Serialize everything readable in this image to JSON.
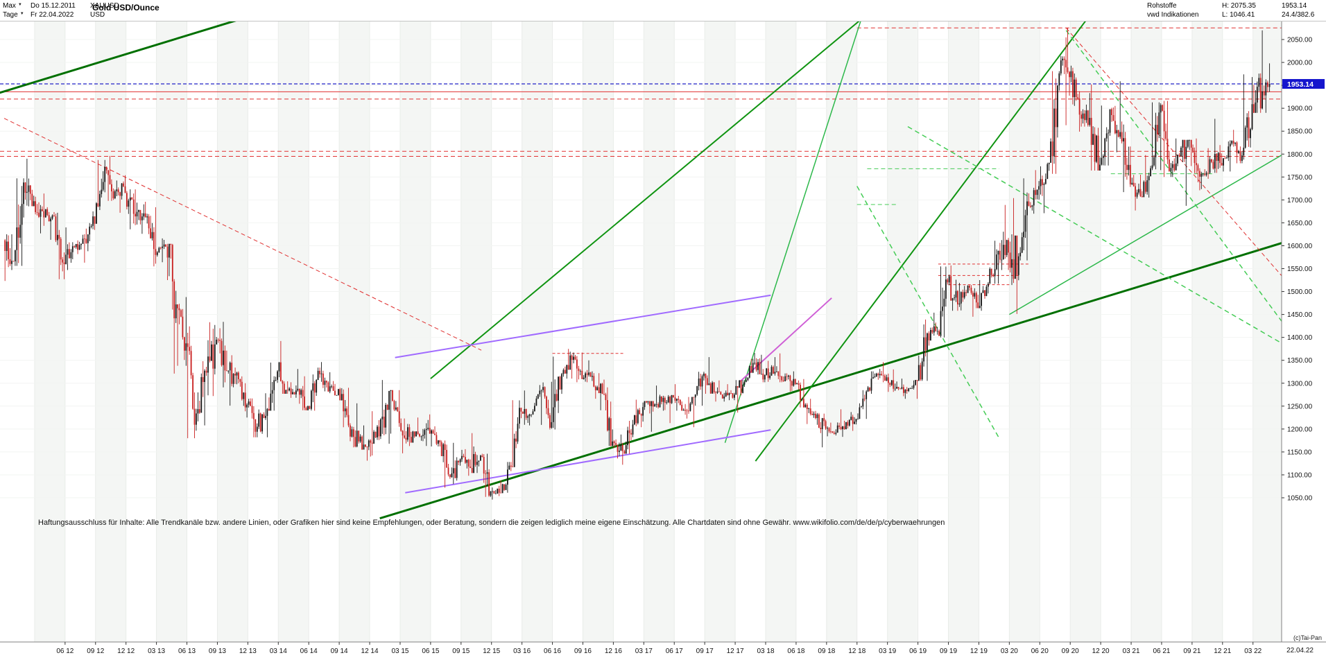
{
  "header": {
    "range_selector": "Max",
    "start_date": "Do 15.12.2011",
    "symbol": "XAUUSD",
    "period_selector": "Tage",
    "end_date": "Fr 22.04.2022",
    "currency": "USD",
    "title": "Gold USD/Ounce",
    "category": "Rohstoffe",
    "provider": "vwd Indikationen",
    "high_label": "H: 2075.35",
    "low_label": "L: 1046.41",
    "last_price": "1953.14",
    "change_info": "24.4/382.6"
  },
  "icons": {
    "dropdown": "▼"
  },
  "price_axis": {
    "max": 2050,
    "min": 1050,
    "step": 50,
    "labels": [
      "2050.00",
      "2000.00",
      "1950.00",
      "1900.00",
      "1850.00",
      "1800.00",
      "1750.00",
      "1700.00",
      "1650.00",
      "1600.00",
      "1550.00",
      "1500.00",
      "1450.00",
      "1400.00",
      "1350.00",
      "1300.00",
      "1250.00",
      "1200.00",
      "1150.00",
      "1100.00",
      "1050.00"
    ],
    "badge": {
      "text": "1953.14",
      "price": 1953.14,
      "color": "#1515cd"
    }
  },
  "time_axis": {
    "labels": [
      "06 12",
      "09 12",
      "12 12",
      "03 13",
      "06 13",
      "09 13",
      "12 13",
      "03 14",
      "06 14",
      "09 14",
      "12 14",
      "03 15",
      "06 15",
      "09 15",
      "12 15",
      "03 16",
      "06 16",
      "09 16",
      "12 16",
      "03 17",
      "06 17",
      "09 17",
      "12 17",
      "03 18",
      "06 18",
      "09 18",
      "12 18",
      "03 19",
      "06 19",
      "09 19",
      "12 19",
      "03 20",
      "06 20",
      "09 20",
      "12 20",
      "03 21",
      "06 21",
      "09 21",
      "12 21",
      "03 22"
    ],
    "first_label_month": 6,
    "label_step_months": 3,
    "end_date": "22.04.22",
    "copyright": "(c)Tai-Pan"
  },
  "disclaimer": "Haftungsausschluss für Inhalte: Alle Trendkanäle bzw. andere Linien, oder Grafiken hier sind keine Empfehlungen, oder Beratung, sondern die zeigen lediglich meine eigene Einschätzung. Alle Chartdaten sind ohne Gewähr.  www.wikifolio.com/de/de/p/cyberwaehrungen",
  "chart_data": {
    "type": "candlestick",
    "title": "Gold USD/Ounce",
    "x_start": "2011-12-15",
    "x_end": "2022-04-22",
    "x_unit": "months since 2011-12",
    "ylim": [
      1050,
      2050
    ],
    "y_axis": {
      "min": 1050,
      "max": 2050,
      "step": 50
    },
    "shown_high": 2075.35,
    "shown_low": 1046.41,
    "last": 1953.14,
    "first_open": 1612,
    "candle_up_color": "#151515",
    "candle_down_color": "#c81e1e",
    "monthly_hlc_note": "per month [high, low, close], Dec 2011 .. Apr 2022",
    "monthly_hlc": [
      [
        1625,
        1523,
        1566
      ],
      [
        1747,
        1556,
        1738
      ],
      [
        1790,
        1686,
        1697
      ],
      [
        1714,
        1627,
        1662
      ],
      [
        1684,
        1613,
        1664
      ],
      [
        1672,
        1527,
        1560
      ],
      [
        1640,
        1547,
        1597
      ],
      [
        1625,
        1563,
        1615
      ],
      [
        1675,
        1588,
        1648
      ],
      [
        1787,
        1648,
        1772
      ],
      [
        1796,
        1698,
        1719
      ],
      [
        1754,
        1672,
        1715
      ],
      [
        1723,
        1636,
        1664
      ],
      [
        1696,
        1626,
        1662
      ],
      [
        1684,
        1555,
        1580
      ],
      [
        1616,
        1564,
        1598
      ],
      [
        1604,
        1321,
        1472
      ],
      [
        1488,
        1338,
        1387
      ],
      [
        1424,
        1180,
        1234
      ],
      [
        1348,
        1208,
        1323
      ],
      [
        1433,
        1272,
        1395
      ],
      [
        1434,
        1291,
        1327
      ],
      [
        1361,
        1251,
        1323
      ],
      [
        1326,
        1225,
        1253
      ],
      [
        1267,
        1182,
        1205
      ],
      [
        1278,
        1182,
        1244
      ],
      [
        1345,
        1240,
        1326
      ],
      [
        1392,
        1277,
        1284
      ],
      [
        1331,
        1268,
        1288
      ],
      [
        1315,
        1241,
        1250
      ],
      [
        1334,
        1240,
        1327
      ],
      [
        1346,
        1281,
        1282
      ],
      [
        1324,
        1273,
        1287
      ],
      [
        1290,
        1204,
        1208
      ],
      [
        1256,
        1160,
        1173
      ],
      [
        1208,
        1131,
        1175
      ],
      [
        1239,
        1140,
        1184
      ],
      [
        1307,
        1168,
        1283
      ],
      [
        1285,
        1190,
        1213
      ],
      [
        1223,
        1147,
        1183
      ],
      [
        1225,
        1170,
        1184
      ],
      [
        1232,
        1163,
        1190
      ],
      [
        1206,
        1162,
        1171
      ],
      [
        1175,
        1072,
        1095
      ],
      [
        1170,
        1080,
        1134
      ],
      [
        1156,
        1098,
        1115
      ],
      [
        1191,
        1104,
        1142
      ],
      [
        1146,
        1052,
        1064
      ],
      [
        1088,
        1046,
        1060
      ],
      [
        1128,
        1061,
        1118
      ],
      [
        1263,
        1117,
        1238
      ],
      [
        1284,
        1208,
        1232
      ],
      [
        1296,
        1209,
        1285
      ],
      [
        1303,
        1199,
        1215
      ],
      [
        1358,
        1199,
        1320
      ],
      [
        1375,
        1310,
        1351
      ],
      [
        1367,
        1302,
        1309
      ],
      [
        1350,
        1302,
        1316
      ],
      [
        1322,
        1241,
        1277
      ],
      [
        1308,
        1163,
        1173
      ],
      [
        1188,
        1122,
        1152
      ],
      [
        1220,
        1146,
        1210
      ],
      [
        1264,
        1204,
        1248
      ],
      [
        1261,
        1194,
        1249
      ],
      [
        1295,
        1240,
        1268
      ],
      [
        1274,
        1213,
        1269
      ],
      [
        1298,
        1240,
        1242
      ],
      [
        1270,
        1204,
        1269
      ],
      [
        1325,
        1251,
        1321
      ],
      [
        1357,
        1277,
        1280
      ],
      [
        1306,
        1260,
        1271
      ],
      [
        1298,
        1263,
        1275
      ],
      [
        1307,
        1236,
        1303
      ],
      [
        1366,
        1302,
        1345
      ],
      [
        1362,
        1302,
        1318
      ],
      [
        1357,
        1303,
        1325
      ],
      [
        1365,
        1302,
        1315
      ],
      [
        1326,
        1282,
        1298
      ],
      [
        1309,
        1247,
        1253
      ],
      [
        1266,
        1211,
        1224
      ],
      [
        1235,
        1160,
        1201
      ],
      [
        1214,
        1184,
        1192
      ],
      [
        1243,
        1183,
        1215
      ],
      [
        1237,
        1196,
        1222
      ],
      [
        1285,
        1222,
        1282
      ],
      [
        1326,
        1277,
        1321
      ],
      [
        1346,
        1302,
        1313
      ],
      [
        1330,
        1281,
        1292
      ],
      [
        1310,
        1266,
        1283
      ],
      [
        1307,
        1266,
        1305
      ],
      [
        1439,
        1305,
        1409
      ],
      [
        1454,
        1382,
        1414
      ],
      [
        1555,
        1400,
        1520
      ],
      [
        1557,
        1458,
        1472
      ],
      [
        1519,
        1459,
        1513
      ],
      [
        1514,
        1445,
        1464
      ],
      [
        1525,
        1458,
        1517
      ],
      [
        1611,
        1517,
        1589
      ],
      [
        1689,
        1547,
        1585
      ],
      [
        1704,
        1451,
        1577
      ],
      [
        1747,
        1568,
        1687
      ],
      [
        1765,
        1670,
        1730
      ],
      [
        1781,
        1671,
        1781
      ],
      [
        1981,
        1757,
        1976
      ],
      [
        2075.35,
        1863,
        1968
      ],
      [
        1993,
        1849,
        1886
      ],
      [
        1933,
        1860,
        1879
      ],
      [
        1952,
        1764,
        1777
      ],
      [
        1906,
        1775,
        1898
      ],
      [
        1959,
        1804,
        1848
      ],
      [
        1871,
        1717,
        1734
      ],
      [
        1755,
        1677,
        1708
      ],
      [
        1798,
        1705,
        1769
      ],
      [
        1913,
        1765,
        1907
      ],
      [
        1916,
        1750,
        1770
      ],
      [
        1834,
        1750,
        1814
      ],
      [
        1831,
        1687,
        1814
      ],
      [
        1834,
        1721,
        1757
      ],
      [
        1813,
        1746,
        1783
      ],
      [
        1877,
        1759,
        1775
      ],
      [
        1830,
        1762,
        1829
      ],
      [
        1853,
        1780,
        1797
      ],
      [
        1974,
        1788,
        1909
      ],
      [
        2070,
        1890,
        1937
      ],
      [
        1998,
        1890,
        1953.14
      ]
    ],
    "lines": {
      "horizontal": [
        {
          "p": 1953.14,
          "color": "#2121c8",
          "dash": "5,3",
          "w": 1.2,
          "name": "last-price-line"
        },
        {
          "p": 1936,
          "color": "#e03030",
          "w": 1,
          "name": "resistance-line"
        },
        {
          "p": 1920,
          "color": "#e03030",
          "dash": "6,4",
          "w": 1,
          "name": "resistance-line"
        },
        {
          "p": 1806,
          "color": "#e03030",
          "dash": "6,4",
          "w": 1,
          "name": "support-line"
        },
        {
          "p": 1795,
          "color": "#e03030",
          "dash": "6,4",
          "w": 1,
          "name": "support-line"
        },
        {
          "p": 2075.35,
          "m1": 84,
          "color": "#e03030",
          "dash": "6,4",
          "w": 1,
          "name": "all-time-high-line"
        },
        {
          "p": 1560,
          "m1": 92,
          "m2": 101,
          "color": "#e03030",
          "dash": "4,3",
          "w": 1,
          "name": "level-line"
        },
        {
          "p": 1535,
          "m1": 92,
          "m2": 100,
          "color": "#e03030",
          "dash": "4,3",
          "w": 1,
          "name": "level-line"
        },
        {
          "p": 1515,
          "m1": 93,
          "m2": 99,
          "color": "#e03030",
          "dash": "4,3",
          "w": 1,
          "name": "level-line"
        },
        {
          "p": 1365,
          "m1": 54,
          "m2": 61,
          "color": "#e03030",
          "dash": "4,3",
          "w": 1,
          "name": "level-line"
        },
        {
          "p": 1768,
          "m1": 85,
          "m2": 98,
          "color": "#44cc55",
          "dash": "6,4",
          "w": 1,
          "name": "level-line"
        },
        {
          "p": 1690,
          "m1": 84,
          "m2": 88,
          "color": "#44cc55",
          "dash": "6,4",
          "w": 1,
          "name": "level-line"
        },
        {
          "p": 1757,
          "m1": 109,
          "m2": 119,
          "color": "#44cc55",
          "dash": "6,4",
          "w": 1,
          "name": "level-line"
        }
      ],
      "diagonal": [
        {
          "m1": -1,
          "p1": 1930,
          "m2": 30,
          "p2": 2140,
          "color": "#007000",
          "w": 3,
          "name": "trend-channel"
        },
        {
          "m1": 37,
          "p1": 1005,
          "m2": 126,
          "p2": 1607,
          "color": "#007000",
          "w": 3,
          "name": "trend-channel"
        },
        {
          "m1": 42,
          "p1": 1310,
          "m2": 85,
          "p2": 2105,
          "color": "#0f9411",
          "w": 2,
          "name": "trend-line"
        },
        {
          "m1": 74,
          "p1": 1130,
          "m2": 107,
          "p2": 2105,
          "color": "#0f9411",
          "w": 2,
          "name": "trend-line"
        },
        {
          "m1": 71,
          "p1": 1170,
          "m2": 84.5,
          "p2": 2100,
          "color": "#2cb84a",
          "w": 1.5,
          "name": "trend-line"
        },
        {
          "m1": 99,
          "p1": 1450,
          "m2": 126,
          "p2": 1800,
          "color": "#2cb84a",
          "w": 1.5,
          "name": "trend-line"
        },
        {
          "m1": 104.6,
          "p1": 2070,
          "m2": 126,
          "p2": 1430,
          "color": "#44cc55",
          "dash": "7,5",
          "w": 1.5,
          "name": "trend-line-dashed"
        },
        {
          "m1": 89,
          "p1": 1860,
          "m2": 126,
          "p2": 1385,
          "color": "#44cc55",
          "dash": "7,5",
          "w": 1.5,
          "name": "trend-line-dashed"
        },
        {
          "m1": 84,
          "p1": 1730,
          "m2": 98,
          "p2": 1180,
          "color": "#44cc55",
          "dash": "7,5",
          "w": 1.5,
          "name": "trend-line-dashed"
        },
        {
          "m1": 38.5,
          "p1": 1356,
          "m2": 75.5,
          "p2": 1492,
          "color": "#a06aff",
          "w": 2,
          "name": "violet-channel"
        },
        {
          "m1": 39.5,
          "p1": 1061,
          "m2": 75.5,
          "p2": 1198,
          "color": "#a06aff",
          "w": 2,
          "name": "violet-channel"
        },
        {
          "m1": 72.5,
          "p1": 1304,
          "m2": 81.5,
          "p2": 1486,
          "color": "#cf5fd6",
          "w": 2,
          "name": "violet-line"
        },
        {
          "m1": 0,
          "p1": 1878,
          "m2": 47,
          "p2": 1372,
          "color": "#e03030",
          "dash": "6,4",
          "w": 1,
          "name": "falling-line-dashed"
        },
        {
          "m1": 104.6,
          "p1": 2075,
          "m2": 126,
          "p2": 1530,
          "color": "#e03030",
          "dash": "6,4",
          "w": 1,
          "name": "falling-line-dashed"
        }
      ]
    }
  }
}
